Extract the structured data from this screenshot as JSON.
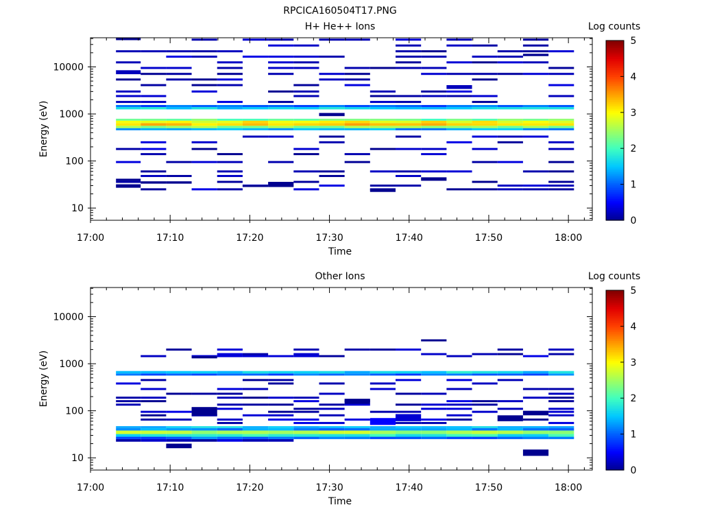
{
  "figure_title": "RPCICA160504T17.PNG",
  "colorscale": [
    {
      "v": 0,
      "c": "#00008f"
    },
    {
      "v": 0.5,
      "c": "#0000ff"
    },
    {
      "v": 1,
      "c": "#0060ff"
    },
    {
      "v": 1.5,
      "c": "#00c8ff"
    },
    {
      "v": 2,
      "c": "#40ffbf"
    },
    {
      "v": 2.5,
      "c": "#9fff60"
    },
    {
      "v": 3,
      "c": "#ffff00"
    },
    {
      "v": 3.5,
      "c": "#ffa000"
    },
    {
      "v": 4,
      "c": "#ff4000"
    },
    {
      "v": 4.5,
      "c": "#e00000"
    },
    {
      "v": 5,
      "c": "#800000"
    }
  ],
  "chart_data": [
    {
      "type": "heatmap",
      "title": "H+ He++ Ions",
      "xlabel": "Time",
      "ylabel": "Energy (eV)",
      "colorbar_label": "Log counts",
      "colorbar_ticks": [
        "0",
        "1",
        "2",
        "3",
        "4",
        "5"
      ],
      "x_ticks": [
        "17:00",
        "17:10",
        "17:20",
        "17:30",
        "17:40",
        "17:50",
        "18:00"
      ],
      "y_ticks": [
        "10",
        "100",
        "1000",
        "10000"
      ],
      "xlim_min": [
        0,
        63
      ],
      "ylim_log10": [
        0.74,
        4.62
      ],
      "time_bins_min": [
        3.2,
        6.3,
        9.5,
        12.7,
        15.9,
        19.1,
        22.3,
        25.5,
        28.7,
        31.9,
        35.1,
        38.3,
        41.5,
        44.7,
        47.9,
        51.1,
        54.3,
        57.5,
        60.7
      ],
      "bands": [
        {
          "e_lo": 450,
          "e_hi": 500,
          "t0": 3.2,
          "t1": 60.7,
          "v": 1.3
        },
        {
          "e_lo": 500,
          "e_hi": 560,
          "t0": 3.2,
          "t1": 60.7,
          "v": 2.4
        },
        {
          "e_lo": 560,
          "e_hi": 640,
          "t0": 3.2,
          "t1": 60.7,
          "v": 3.3
        },
        {
          "e_lo": 640,
          "e_hi": 720,
          "t0": 3.2,
          "t1": 60.7,
          "v": 3.0
        },
        {
          "e_lo": 720,
          "e_hi": 790,
          "t0": 3.2,
          "t1": 60.7,
          "v": 2.2
        },
        {
          "e_lo": 1250,
          "e_hi": 1400,
          "t0": 3.2,
          "t1": 60.7,
          "v": 1.6
        },
        {
          "e_lo": 1400,
          "e_hi": 1550,
          "t0": 3.2,
          "t1": 60.7,
          "v": 1.0
        }
      ],
      "blocks": [
        {
          "t0": 3.2,
          "t1": 6.3,
          "e_lo": 7000,
          "e_hi": 8500,
          "v": 0.2
        },
        {
          "t0": 3.2,
          "t1": 6.3,
          "e_lo": 38000,
          "e_hi": 41000,
          "v": 0
        },
        {
          "t0": 3.2,
          "t1": 6.3,
          "e_lo": 27,
          "e_hi": 32,
          "v": 0
        },
        {
          "t0": 3.2,
          "t1": 6.3,
          "e_lo": 38,
          "e_hi": 42,
          "v": 0
        },
        {
          "t0": 6.3,
          "t1": 9.5,
          "e_lo": 33,
          "e_hi": 37,
          "v": 0
        },
        {
          "t0": 9.5,
          "t1": 12.7,
          "e_lo": 33,
          "e_hi": 37,
          "v": 0
        },
        {
          "t0": 19.1,
          "t1": 22.3,
          "e_lo": 28,
          "e_hi": 31,
          "v": 0
        },
        {
          "t0": 22.3,
          "t1": 25.5,
          "e_lo": 28,
          "e_hi": 36,
          "v": 0
        },
        {
          "t0": 35.1,
          "t1": 38.3,
          "e_lo": 22,
          "e_hi": 26,
          "v": 0
        },
        {
          "t0": 41.5,
          "t1": 44.7,
          "e_lo": 38,
          "e_hi": 45,
          "v": 0
        },
        {
          "t0": 44.7,
          "t1": 47.9,
          "e_lo": 3400,
          "e_hi": 4100,
          "v": 0.2
        },
        {
          "t0": 54.3,
          "t1": 57.5,
          "e_lo": 17000,
          "e_hi": 19000,
          "v": 0
        },
        {
          "t0": 28.7,
          "t1": 31.9,
          "e_lo": 900,
          "e_hi": 1050,
          "v": 0
        }
      ],
      "sparse_energies": [
        25,
        30,
        36,
        48,
        60,
        95,
        140,
        180,
        250,
        330,
        1800,
        2400,
        3000,
        4100,
        5400,
        7100,
        9500,
        12500,
        16500,
        21500,
        28500,
        38000
      ]
    },
    {
      "type": "heatmap",
      "title": "Other Ions",
      "xlabel": "Time",
      "ylabel": "Energy (eV)",
      "colorbar_label": "Log counts",
      "colorbar_ticks": [
        "0",
        "1",
        "2",
        "3",
        "4",
        "5"
      ],
      "x_ticks": [
        "17:00",
        "17:10",
        "17:20",
        "17:30",
        "17:40",
        "17:50",
        "18:00"
      ],
      "y_ticks": [
        "10",
        "100",
        "1000",
        "10000"
      ],
      "xlim_min": [
        0,
        63
      ],
      "ylim_log10": [
        0.74,
        4.62
      ],
      "time_bins_min": [
        3.2,
        6.3,
        9.5,
        12.7,
        15.9,
        19.1,
        22.3,
        25.5,
        28.7,
        31.9,
        35.1,
        38.3,
        41.5,
        44.7,
        47.9,
        51.1,
        54.3,
        57.5,
        60.7
      ],
      "bands": [
        {
          "e_lo": 22,
          "e_hi": 25,
          "t0": 3.2,
          "t1": 25.5,
          "v": 0.2
        },
        {
          "e_lo": 25,
          "e_hi": 28,
          "t0": 3.2,
          "t1": 60.7,
          "v": 1.0
        },
        {
          "e_lo": 28,
          "e_hi": 32,
          "t0": 3.2,
          "t1": 60.7,
          "v": 1.8
        },
        {
          "e_lo": 32,
          "e_hi": 38,
          "t0": 3.2,
          "t1": 60.7,
          "v": 2.6
        },
        {
          "e_lo": 38,
          "e_hi": 43,
          "t0": 3.2,
          "t1": 60.7,
          "v": 1.2
        },
        {
          "e_lo": 43,
          "e_hi": 47,
          "t0": 3.2,
          "t1": 60.7,
          "v": 1.5
        },
        {
          "e_lo": 560,
          "e_hi": 620,
          "t0": 3.2,
          "t1": 60.7,
          "v": 1.0
        },
        {
          "e_lo": 620,
          "e_hi": 700,
          "t0": 3.2,
          "t1": 60.7,
          "v": 1.6
        }
      ],
      "blocks": [
        {
          "t0": 9.5,
          "t1": 12.7,
          "e_lo": 16,
          "e_hi": 20,
          "v": 0
        },
        {
          "t0": 12.7,
          "t1": 15.9,
          "e_lo": 80,
          "e_hi": 120,
          "v": 0
        },
        {
          "t0": 35.1,
          "t1": 38.3,
          "e_lo": 50,
          "e_hi": 70,
          "v": 0.5
        },
        {
          "t0": 38.3,
          "t1": 41.5,
          "e_lo": 60,
          "e_hi": 85,
          "v": 0.3
        },
        {
          "t0": 31.9,
          "t1": 35.1,
          "e_lo": 140,
          "e_hi": 180,
          "v": 0
        },
        {
          "t0": 54.3,
          "t1": 57.5,
          "e_lo": 11,
          "e_hi": 15,
          "v": 0
        },
        {
          "t0": 54.3,
          "t1": 57.5,
          "e_lo": 80,
          "e_hi": 100,
          "v": 0
        },
        {
          "t0": 51.1,
          "t1": 54.3,
          "e_lo": 60,
          "e_hi": 80,
          "v": 0
        },
        {
          "t0": 41.5,
          "t1": 44.7,
          "e_lo": 3000,
          "e_hi": 3300,
          "v": 0
        },
        {
          "t0": 12.7,
          "t1": 15.9,
          "e_lo": 1300,
          "e_hi": 1450,
          "v": 0
        }
      ],
      "sparse_energies": [
        55,
        65,
        80,
        95,
        110,
        135,
        160,
        190,
        230,
        290,
        380,
        450,
        1450,
        1600,
        2000
      ]
    }
  ]
}
